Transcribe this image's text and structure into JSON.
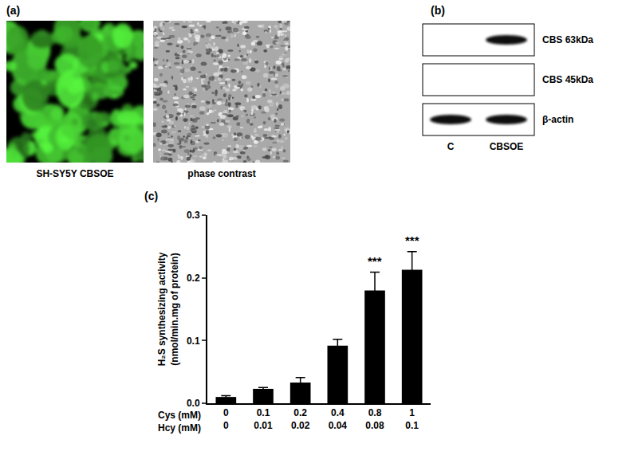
{
  "chart_data": {
    "type": "bar",
    "panel_label": "(c)",
    "y_label": [
      "H₂S synthesizing activity",
      "(nmol/min.mg of protein)"
    ],
    "category_rows": [
      {
        "label": "Cys (mM)",
        "categories": [
          "0",
          "0.1",
          "0.2",
          "0.4",
          "0.8",
          "1"
        ]
      },
      {
        "label": "Hcy (mM)",
        "categories": [
          "0",
          "0.01",
          "0.02",
          "0.04",
          "0.08",
          "0.1"
        ]
      }
    ],
    "values": [
      0.01,
      0.023,
      0.033,
      0.092,
      0.18,
      0.213
    ],
    "errors": [
      0.002,
      0.002,
      0.008,
      0.01,
      0.029,
      0.029
    ],
    "color": "#000000",
    "ylim": [
      0,
      0.3
    ],
    "yticks": [
      {
        "value": 0,
        "label": "0.0"
      },
      {
        "value": 0.1,
        "label": "0.1"
      },
      {
        "value": 0.2,
        "label": "0.2"
      },
      {
        "value": 0.3,
        "label": "0.3"
      }
    ],
    "grid": false,
    "annotations": [
      {
        "category_index": 4,
        "text": "***"
      },
      {
        "category_index": 5,
        "text": "***"
      }
    ]
  },
  "panel_a": {
    "label": "(a)",
    "captions": [
      "SH-SY5Y CBSOE",
      "phase contrast"
    ]
  },
  "panel_b": {
    "label": "(b)",
    "lanes": [
      "C",
      "CBSOE"
    ],
    "rows": [
      {
        "label": "CBS 63kDa",
        "bands": [
          false,
          true
        ]
      },
      {
        "label": "CBS 45kDa",
        "bands": [
          false,
          false
        ]
      },
      {
        "label": "β-actin",
        "bands": [
          true,
          true
        ]
      }
    ]
  }
}
